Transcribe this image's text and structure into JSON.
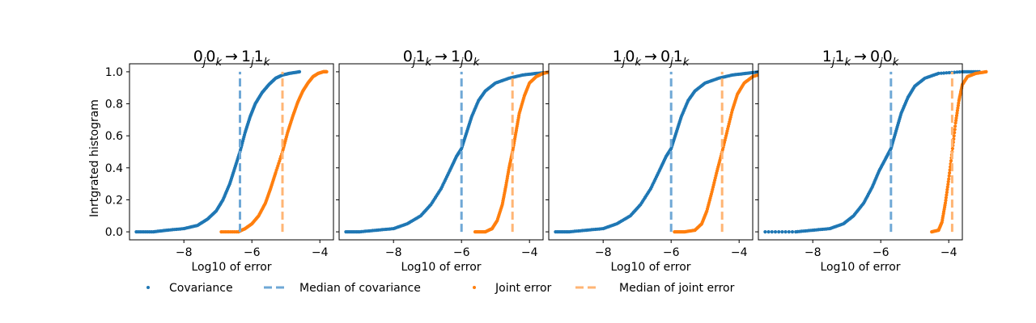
{
  "chart_data": {
    "type": "scatter",
    "ylabel": "Inrtgrated histogram",
    "xlabel": "Log10 of error",
    "xlim": [
      -9.6,
      -3.6
    ],
    "ylim": [
      -0.05,
      1.05
    ],
    "xticks": [
      -8,
      -6,
      -4
    ],
    "yticks": [
      0.0,
      0.2,
      0.4,
      0.6,
      0.8,
      1.0
    ],
    "xtick_labels": [
      "−8",
      "−6",
      "−4"
    ],
    "ytick_labels": [
      "0.0",
      "0.2",
      "0.4",
      "0.6",
      "0.8",
      "1.0"
    ],
    "colors": {
      "covariance": "#1f77b4",
      "joint": "#ff7f0e",
      "covariance_median": "#6fa8d6",
      "joint_median": "#ffb574"
    },
    "legend": {
      "placement": "bottom",
      "entries": [
        {
          "label": "Covariance",
          "style": "dot",
          "series": "covariance"
        },
        {
          "label": "Median of covariance",
          "style": "dashed",
          "series": "covariance"
        },
        {
          "label": "Joint error",
          "style": "dot",
          "series": "joint"
        },
        {
          "label": "Median of joint error",
          "style": "dashed",
          "series": "joint"
        }
      ]
    },
    "panels": [
      {
        "title": {
          "a1": "0",
          "s1": "j",
          "a2": "0",
          "s2": "k",
          "b1": "1",
          "s3": "j",
          "b2": "1",
          "s4": "k"
        },
        "covariance": {
          "median": -6.35,
          "points": [
            [
              -9.4,
              0.0
            ],
            [
              -8.9,
              0.0
            ],
            [
              -8.5,
              0.01
            ],
            [
              -8.0,
              0.02
            ],
            [
              -7.6,
              0.04
            ],
            [
              -7.3,
              0.08
            ],
            [
              -7.05,
              0.13
            ],
            [
              -6.85,
              0.2
            ],
            [
              -6.65,
              0.3
            ],
            [
              -6.5,
              0.4
            ],
            [
              -6.35,
              0.5
            ],
            [
              -6.2,
              0.62
            ],
            [
              -6.05,
              0.72
            ],
            [
              -5.9,
              0.8
            ],
            [
              -5.7,
              0.87
            ],
            [
              -5.5,
              0.92
            ],
            [
              -5.3,
              0.96
            ],
            [
              -5.1,
              0.98
            ],
            [
              -4.9,
              0.99
            ],
            [
              -4.6,
              1.0
            ]
          ]
        },
        "joint": {
          "median": -5.1,
          "points": [
            [
              -6.9,
              0.0
            ],
            [
              -6.4,
              0.0
            ],
            [
              -6.2,
              0.02
            ],
            [
              -6.0,
              0.05
            ],
            [
              -5.8,
              0.1
            ],
            [
              -5.6,
              0.18
            ],
            [
              -5.45,
              0.27
            ],
            [
              -5.3,
              0.37
            ],
            [
              -5.1,
              0.5
            ],
            [
              -4.95,
              0.62
            ],
            [
              -4.8,
              0.72
            ],
            [
              -4.65,
              0.81
            ],
            [
              -4.5,
              0.88
            ],
            [
              -4.35,
              0.93
            ],
            [
              -4.2,
              0.97
            ],
            [
              -4.05,
              0.99
            ],
            [
              -3.9,
              1.0
            ],
            [
              -3.8,
              1.0
            ]
          ]
        }
      },
      {
        "title": {
          "a1": "0",
          "s1": "j",
          "a2": "1",
          "s2": "k",
          "b1": "1",
          "s3": "j",
          "b2": "0",
          "s4": "k"
        },
        "covariance": {
          "median": -6.0,
          "points": [
            [
              -9.4,
              0.0
            ],
            [
              -9.0,
              0.0
            ],
            [
              -8.5,
              0.01
            ],
            [
              -8.0,
              0.02
            ],
            [
              -7.6,
              0.05
            ],
            [
              -7.2,
              0.1
            ],
            [
              -6.9,
              0.17
            ],
            [
              -6.6,
              0.27
            ],
            [
              -6.35,
              0.38
            ],
            [
              -6.15,
              0.47
            ],
            [
              -6.0,
              0.52
            ],
            [
              -5.85,
              0.62
            ],
            [
              -5.7,
              0.72
            ],
            [
              -5.5,
              0.82
            ],
            [
              -5.3,
              0.88
            ],
            [
              -5.0,
              0.93
            ],
            [
              -4.6,
              0.96
            ],
            [
              -4.2,
              0.98
            ],
            [
              -3.8,
              0.99
            ],
            [
              -3.3,
              1.0
            ]
          ]
        },
        "joint": {
          "median": -4.5,
          "points": [
            [
              -5.6,
              0.0
            ],
            [
              -5.3,
              0.0
            ],
            [
              -5.1,
              0.02
            ],
            [
              -4.95,
              0.07
            ],
            [
              -4.8,
              0.17
            ],
            [
              -4.7,
              0.28
            ],
            [
              -4.6,
              0.4
            ],
            [
              -4.5,
              0.5
            ],
            [
              -4.4,
              0.62
            ],
            [
              -4.3,
              0.74
            ],
            [
              -4.15,
              0.85
            ],
            [
              -4.0,
              0.93
            ],
            [
              -3.8,
              0.97
            ],
            [
              -3.6,
              0.99
            ],
            [
              -3.4,
              1.0
            ],
            [
              -3.0,
              1.0
            ]
          ]
        }
      },
      {
        "title": {
          "a1": "1",
          "s1": "j",
          "a2": "0",
          "s2": "k",
          "b1": "0",
          "s3": "j",
          "b2": "1",
          "s4": "k"
        },
        "covariance": {
          "median": -6.0,
          "points": [
            [
              -9.4,
              0.0
            ],
            [
              -9.0,
              0.0
            ],
            [
              -8.5,
              0.01
            ],
            [
              -8.0,
              0.02
            ],
            [
              -7.6,
              0.05
            ],
            [
              -7.2,
              0.1
            ],
            [
              -6.9,
              0.17
            ],
            [
              -6.6,
              0.27
            ],
            [
              -6.35,
              0.38
            ],
            [
              -6.15,
              0.47
            ],
            [
              -6.0,
              0.52
            ],
            [
              -5.85,
              0.62
            ],
            [
              -5.7,
              0.72
            ],
            [
              -5.5,
              0.82
            ],
            [
              -5.3,
              0.88
            ],
            [
              -5.0,
              0.93
            ],
            [
              -4.6,
              0.96
            ],
            [
              -4.2,
              0.98
            ],
            [
              -3.8,
              0.99
            ],
            [
              -3.4,
              1.0
            ]
          ]
        },
        "joint": {
          "median": -4.5,
          "points": [
            [
              -5.9,
              0.0
            ],
            [
              -5.6,
              0.0
            ],
            [
              -5.3,
              0.01
            ],
            [
              -5.1,
              0.05
            ],
            [
              -4.95,
              0.13
            ],
            [
              -4.8,
              0.25
            ],
            [
              -4.65,
              0.38
            ],
            [
              -4.5,
              0.5
            ],
            [
              -4.35,
              0.63
            ],
            [
              -4.2,
              0.76
            ],
            [
              -4.05,
              0.86
            ],
            [
              -3.85,
              0.93
            ],
            [
              -3.6,
              0.97
            ],
            [
              -3.3,
              0.99
            ],
            [
              -3.0,
              1.0
            ],
            [
              -2.7,
              1.0
            ]
          ]
        }
      },
      {
        "title": {
          "a1": "1",
          "s1": "j",
          "a2": "1",
          "s2": "k",
          "b1": "0",
          "s3": "j",
          "b2": "0",
          "s4": "k"
        },
        "covariance": {
          "median": -5.7,
          "points": [
            [
              -9.4,
              0.0
            ],
            [
              -8.5,
              0.0
            ],
            [
              -8.0,
              0.01
            ],
            [
              -7.5,
              0.02
            ],
            [
              -7.1,
              0.05
            ],
            [
              -6.8,
              0.1
            ],
            [
              -6.5,
              0.18
            ],
            [
              -6.25,
              0.28
            ],
            [
              -6.05,
              0.38
            ],
            [
              -5.85,
              0.46
            ],
            [
              -5.7,
              0.52
            ],
            [
              -5.55,
              0.63
            ],
            [
              -5.4,
              0.74
            ],
            [
              -5.2,
              0.84
            ],
            [
              -5.0,
              0.91
            ],
            [
              -4.7,
              0.96
            ],
            [
              -4.3,
              0.99
            ],
            [
              -3.6,
              1.0
            ],
            [
              -3.1,
              1.0
            ]
          ]
        },
        "joint": {
          "median": -3.9,
          "points": [
            [
              -4.5,
              0.0
            ],
            [
              -4.3,
              0.01
            ],
            [
              -4.2,
              0.06
            ],
            [
              -4.1,
              0.18
            ],
            [
              -4.0,
              0.33
            ],
            [
              -3.9,
              0.5
            ],
            [
              -3.8,
              0.68
            ],
            [
              -3.7,
              0.82
            ],
            [
              -3.6,
              0.92
            ],
            [
              -3.45,
              0.97
            ],
            [
              -3.2,
              0.99
            ],
            [
              -2.9,
              1.0
            ]
          ]
        }
      }
    ]
  }
}
